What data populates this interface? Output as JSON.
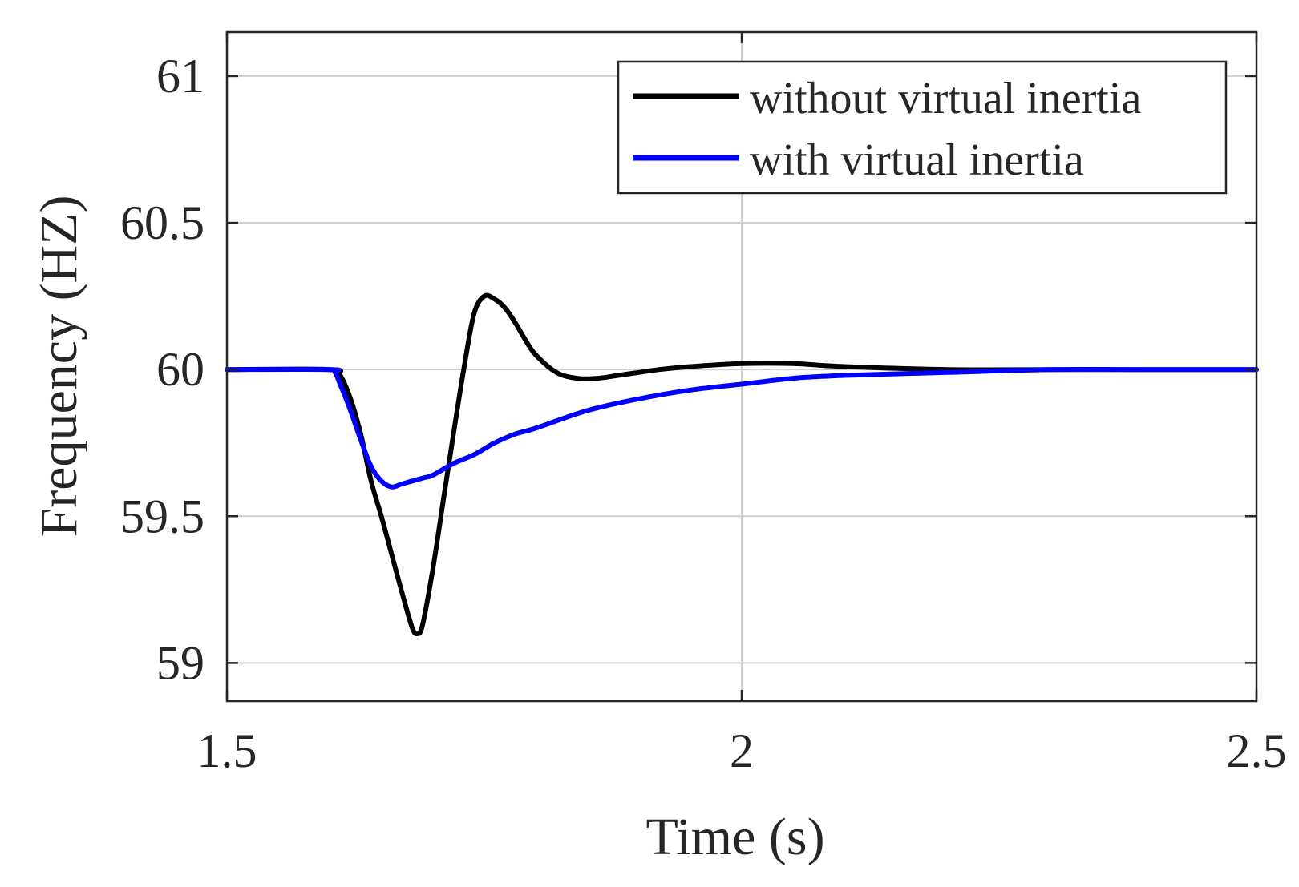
{
  "chart_data": {
    "type": "line",
    "title": "",
    "xlabel": "Time (s)",
    "ylabel": "Frequency (HZ)",
    "xlim": [
      1.5,
      2.5
    ],
    "ylim": [
      58.87,
      61.15
    ],
    "xticks": [
      "1.5",
      "2",
      "2.5"
    ],
    "yticks": [
      "59",
      "59.5",
      "60",
      "60.5",
      "61"
    ],
    "grid": true,
    "legend_position": "top-right",
    "series": [
      {
        "name": "without virtual inertia",
        "color": "#000000",
        "x": [
          1.5,
          1.6,
          1.61,
          1.62,
          1.63,
          1.64,
          1.65,
          1.66,
          1.67,
          1.68,
          1.685,
          1.69,
          1.7,
          1.71,
          1.72,
          1.73,
          1.74,
          1.75,
          1.76,
          1.77,
          1.78,
          1.79,
          1.8,
          1.82,
          1.84,
          1.86,
          1.88,
          1.9,
          1.92,
          1.95,
          2.0,
          2.05,
          2.1,
          2.2,
          2.3,
          2.4,
          2.5
        ],
        "y": [
          60.0,
          60.0,
          59.98,
          59.9,
          59.78,
          59.62,
          59.5,
          59.37,
          59.24,
          59.12,
          59.1,
          59.13,
          59.32,
          59.55,
          59.78,
          60.0,
          60.19,
          60.25,
          60.24,
          60.21,
          60.16,
          60.1,
          60.05,
          59.99,
          59.97,
          59.97,
          59.98,
          59.99,
          60.0,
          60.01,
          60.02,
          60.02,
          60.01,
          60.0,
          60.0,
          60.0,
          60.0
        ]
      },
      {
        "name": "with virtual inertia",
        "color": "#0000ff",
        "x": [
          1.5,
          1.6,
          1.605,
          1.61,
          1.62,
          1.63,
          1.64,
          1.65,
          1.66,
          1.67,
          1.68,
          1.69,
          1.7,
          1.72,
          1.74,
          1.76,
          1.78,
          1.8,
          1.85,
          1.9,
          1.95,
          2.0,
          2.05,
          2.1,
          2.2,
          2.3,
          2.4,
          2.5
        ],
        "y": [
          60.0,
          60.0,
          59.99,
          59.95,
          59.86,
          59.76,
          59.67,
          59.62,
          59.6,
          59.61,
          59.62,
          59.63,
          59.64,
          59.68,
          59.71,
          59.75,
          59.78,
          59.8,
          59.86,
          59.9,
          59.93,
          59.95,
          59.97,
          59.98,
          59.99,
          60.0,
          60.0,
          60.0
        ]
      }
    ]
  }
}
